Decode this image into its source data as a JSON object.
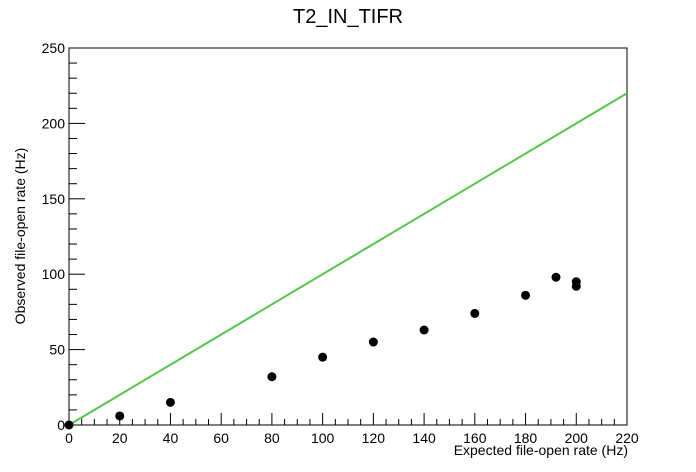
{
  "chart_data": {
    "type": "scatter",
    "title": "T2_IN_TIFR",
    "xlabel": "Expected file-open rate (Hz)",
    "ylabel": "Observed file-open rate (Hz)",
    "xlim": [
      0,
      220
    ],
    "ylim": [
      0,
      250
    ],
    "x_ticks": [
      0,
      20,
      40,
      60,
      80,
      100,
      120,
      140,
      160,
      180,
      200,
      220
    ],
    "y_ticks": [
      0,
      50,
      100,
      150,
      200,
      250
    ],
    "grid": false,
    "series": [
      {
        "points": [
          {
            "x": 0,
            "y": 0
          },
          {
            "x": 20,
            "y": 6
          },
          {
            "x": 40,
            "y": 15
          },
          {
            "x": 80,
            "y": 32
          },
          {
            "x": 100,
            "y": 45
          },
          {
            "x": 120,
            "y": 55
          },
          {
            "x": 140,
            "y": 63
          },
          {
            "x": 160,
            "y": 74
          },
          {
            "x": 180,
            "y": 86
          },
          {
            "x": 192,
            "y": 98
          },
          {
            "x": 200,
            "y": 95
          },
          {
            "x": 200,
            "y": 92
          }
        ],
        "color": "#000000"
      }
    ],
    "reference_line": {
      "from": {
        "x": 0,
        "y": 0
      },
      "to": {
        "x": 220,
        "y": 220
      },
      "color": "#55c44a"
    }
  }
}
